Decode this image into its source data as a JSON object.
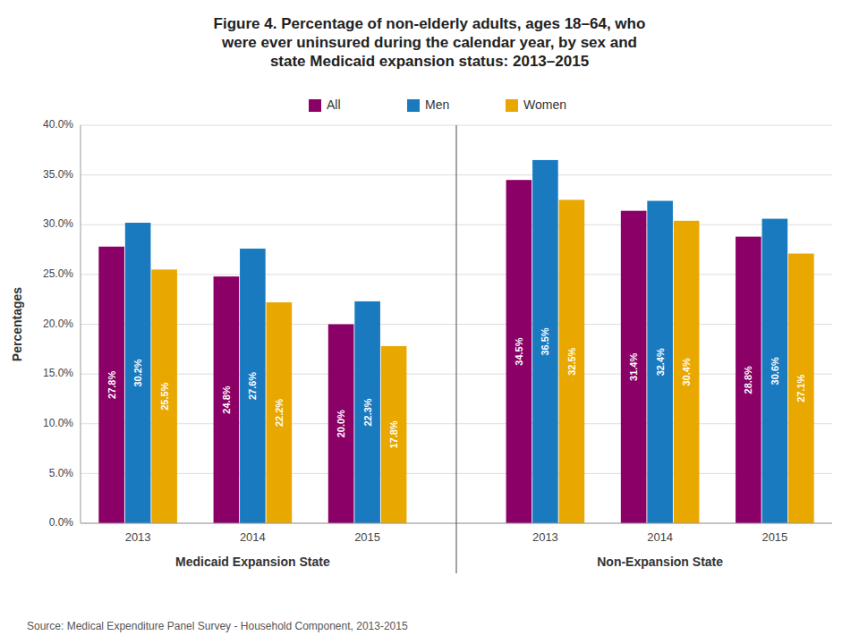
{
  "chart_data": {
    "type": "bar",
    "title": "Figure 4. Percentage of non-elderly adults, ages 18–64, who\nwere ever uninsured during the calendar year, by sex and\nstate Medicaid expansion status: 2013–2015",
    "y_label": "Percentages",
    "source": "Source: Medical Expenditure Panel Survey - Household Component, 2013-2015",
    "categories": [
      "2013",
      "2014",
      "2015",
      "2013",
      "2014",
      "2015"
    ],
    "sections": [
      "Medicaid Expansion State",
      "Medicaid Expansion State",
      "Medicaid Expansion State",
      "Non-Expansion State",
      "Non-Expansion State",
      "Non-Expansion State"
    ],
    "series": [
      {
        "name": "All",
        "color": "#8b0066",
        "values": [
          27.8,
          24.8,
          20.0,
          34.5,
          31.4,
          28.8
        ],
        "value_labels": [
          "27.8%",
          "24.8%",
          "20.0%",
          "34.5%",
          "31.4%",
          "28.8%"
        ]
      },
      {
        "name": "Men",
        "color": "#1a7abf",
        "values": [
          30.2,
          27.6,
          22.3,
          36.5,
          32.4,
          30.6
        ],
        "value_labels": [
          "30.2%",
          "27.6%",
          "22.3%",
          "36.5%",
          "32.4%",
          "30.6%"
        ]
      },
      {
        "name": "Women",
        "color": "#e8a800",
        "values": [
          25.5,
          22.2,
          17.8,
          32.5,
          30.4,
          27.1
        ],
        "value_labels": [
          "25.5%",
          "22.2%",
          "17.8%",
          "32.5%",
          "30.4%",
          "27.1%"
        ]
      }
    ],
    "ylim": [
      0,
      40
    ],
    "yticks": [
      {
        "value": 0,
        "label": "0.0%"
      },
      {
        "value": 5,
        "label": "5.0%"
      },
      {
        "value": 10,
        "label": "10.0%"
      },
      {
        "value": 15,
        "label": "15.0%"
      },
      {
        "value": 20,
        "label": "20.0%"
      },
      {
        "value": 25,
        "label": "25.0%"
      },
      {
        "value": 30,
        "label": "30.0%"
      },
      {
        "value": 35,
        "label": "35.0%"
      },
      {
        "value": 40,
        "label": "40.0%"
      }
    ],
    "grid": true,
    "legend": "top",
    "data_labels": true
  }
}
